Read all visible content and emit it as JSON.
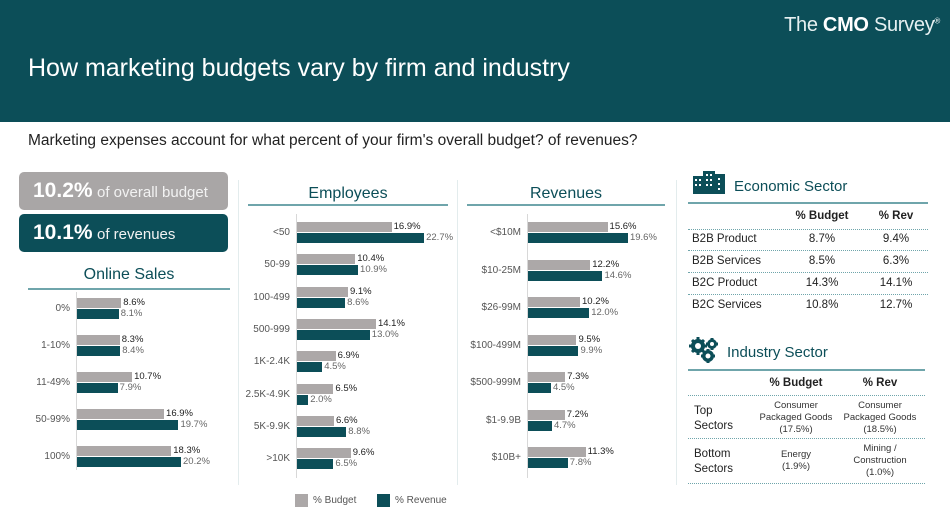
{
  "header": {
    "title": "How marketing budgets vary by firm and industry",
    "logo": {
      "pre": "The ",
      "brand": "CMO",
      "post": " Survey",
      "mark": "®"
    }
  },
  "question": "Marketing expenses account for what percent of your firm's overall budget? of revenues?",
  "kpis": {
    "budget": {
      "value": "10.2%",
      "label": "of overall budget"
    },
    "revenue": {
      "value": "10.1%",
      "label": "of revenues"
    }
  },
  "colors": {
    "header": "#0c4e58",
    "budget": "#aca8a8",
    "revenue": "#0c4e58"
  },
  "legend": {
    "budget": "% Budget",
    "revenue": "% Revenue"
  },
  "chart_data": [
    {
      "type": "bar",
      "orientation": "horizontal",
      "title": "Online Sales",
      "categories": [
        "0%",
        "1-10%",
        "11-49%",
        "50-99%",
        "100%"
      ],
      "series": [
        {
          "name": "% Budget",
          "values": [
            8.6,
            8.3,
            10.7,
            16.9,
            18.3
          ]
        },
        {
          "name": "% Revenue",
          "values": [
            8.1,
            8.4,
            7.9,
            19.7,
            20.2
          ]
        }
      ]
    },
    {
      "type": "bar",
      "orientation": "horizontal",
      "title": "Employees",
      "categories": [
        "<50",
        "50-99",
        "100-499",
        "500-999",
        "1K-2.4K",
        "2.5K-4.9K",
        "5K-9.9K",
        ">10K"
      ],
      "series": [
        {
          "name": "% Budget",
          "values": [
            16.9,
            10.4,
            9.1,
            14.1,
            6.9,
            6.5,
            6.6,
            9.6
          ]
        },
        {
          "name": "% Revenue",
          "values": [
            22.7,
            10.9,
            8.6,
            13.0,
            4.5,
            2.0,
            8.8,
            6.5
          ]
        }
      ]
    },
    {
      "type": "bar",
      "orientation": "horizontal",
      "title": "Revenues",
      "categories": [
        "<$10M",
        "$10-25M",
        "$26-99M",
        "$100-499M",
        "$500-999M",
        "$1-9.9B",
        "$10B+"
      ],
      "series": [
        {
          "name": "% Budget",
          "values": [
            15.6,
            12.2,
            10.2,
            9.5,
            7.3,
            7.2,
            11.3
          ]
        },
        {
          "name": "% Revenue",
          "values": [
            19.6,
            14.6,
            12.0,
            9.9,
            4.5,
            4.7,
            7.8
          ]
        }
      ]
    }
  ],
  "economic": {
    "title": "Economic Sector",
    "icon": "buildings-icon",
    "headers": [
      "% Budget",
      "% Rev"
    ],
    "rows": [
      {
        "label": "B2B Product",
        "budget": "8.7%",
        "rev": "9.4%"
      },
      {
        "label": "B2B Services",
        "budget": "8.5%",
        "rev": "6.3%"
      },
      {
        "label": "B2C Product",
        "budget": "14.3%",
        "rev": "14.1%"
      },
      {
        "label": "B2C Services",
        "budget": "10.8%",
        "rev": "12.7%"
      }
    ]
  },
  "industry": {
    "title": "Industry Sector",
    "icon": "gears-icon",
    "headers": [
      "% Budget",
      "% Rev"
    ],
    "rows": [
      {
        "label": [
          "Top",
          "Sectors"
        ],
        "budget": [
          "Consumer",
          "Packaged Goods",
          "(17.5%)"
        ],
        "rev": [
          "Consumer",
          "Packaged Goods",
          "(18.5%)"
        ]
      },
      {
        "label": [
          "Bottom",
          "Sectors"
        ],
        "budget": [
          "Energy",
          "(1.9%)"
        ],
        "rev": [
          "Mining /",
          "Construction",
          "(1.0%)"
        ]
      }
    ]
  }
}
